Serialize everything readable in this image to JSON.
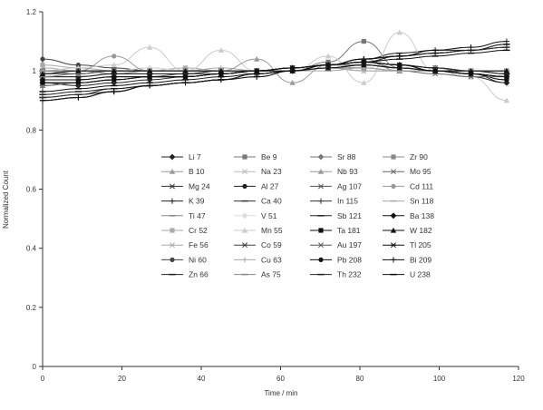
{
  "chart_data": {
    "type": "line",
    "title": "",
    "xlabel": "Time / min",
    "ylabel": "Normalized Count",
    "xlim": [
      0,
      120
    ],
    "ylim": [
      0,
      1.2
    ],
    "xticks": [
      "0",
      "20",
      "40",
      "60",
      "80",
      "100",
      "120"
    ],
    "yticks": [
      "0",
      "0.2",
      "0.4",
      "0.6",
      "0.8",
      "1",
      "1.2"
    ],
    "grid": false,
    "legend_position": "center, 5 columns inside plot",
    "x": [
      0,
      9,
      18,
      27,
      36,
      45,
      54,
      63,
      72,
      81,
      90,
      99,
      108,
      117
    ],
    "series": [
      {
        "name": "Li 7",
        "marker": "diamond-filled",
        "color": "#222222",
        "values": [
          0.96,
          0.95,
          0.96,
          0.97,
          0.98,
          0.99,
          1.0,
          1.01,
          1.02,
          1.03,
          1.02,
          1.01,
          0.99,
          0.96
        ]
      },
      {
        "name": "B 10",
        "marker": "triangle-filled",
        "color": "#999999",
        "values": [
          1.0,
          0.99,
          1.0,
          1.01,
          1.0,
          1.0,
          0.99,
          1.0,
          1.01,
          1.02,
          1.01,
          1.0,
          1.0,
          1.0
        ]
      },
      {
        "name": "Mg 24",
        "marker": "star",
        "color": "#333333",
        "values": [
          0.95,
          0.96,
          0.97,
          0.98,
          0.98,
          0.99,
          1.0,
          1.01,
          1.02,
          1.03,
          1.02,
          1.01,
          1.0,
          0.99
        ]
      },
      {
        "name": "K 39",
        "marker": "plus",
        "color": "#222222",
        "values": [
          0.9,
          0.91,
          0.93,
          0.95,
          0.96,
          0.97,
          0.99,
          1.0,
          1.02,
          1.04,
          1.05,
          1.06,
          1.07,
          1.08
        ]
      },
      {
        "name": "Ti 47",
        "marker": "dash",
        "color": "#888888",
        "values": [
          1.0,
          1.0,
          0.99,
          1.0,
          1.0,
          1.0,
          1.0,
          1.0,
          1.01,
          1.01,
          1.0,
          1.0,
          1.0,
          1.0
        ]
      },
      {
        "name": "Cr 52",
        "marker": "square-filled",
        "color": "#aaaaaa",
        "values": [
          1.02,
          1.01,
          1.0,
          1.0,
          1.01,
          1.0,
          1.0,
          1.0,
          1.01,
          1.01,
          1.0,
          1.0,
          1.0,
          1.0
        ]
      },
      {
        "name": "Fe 56",
        "marker": "x",
        "color": "#aaaaaa",
        "values": [
          1.01,
          1.0,
          1.0,
          1.0,
          1.0,
          1.0,
          1.0,
          1.0,
          1.01,
          1.0,
          1.0,
          1.0,
          1.0,
          1.0
        ]
      },
      {
        "name": "Ni 60",
        "marker": "circle-filled",
        "color": "#444444",
        "values": [
          1.04,
          1.02,
          1.01,
          1.0,
          1.0,
          1.0,
          1.0,
          1.0,
          1.01,
          1.02,
          1.01,
          1.0,
          0.99,
          0.97
        ]
      },
      {
        "name": "Zn 66",
        "marker": "dash",
        "color": "#222222",
        "values": [
          0.91,
          0.92,
          0.94,
          0.95,
          0.96,
          0.97,
          0.99,
          1.0,
          1.02,
          1.04,
          1.06,
          1.07,
          1.07,
          1.09
        ]
      },
      {
        "name": "Be 9",
        "marker": "square-filled",
        "color": "#777777",
        "values": [
          0.98,
          0.99,
          1.0,
          1.0,
          1.0,
          1.0,
          1.0,
          1.0,
          1.03,
          1.1,
          1.01,
          1.0,
          1.0,
          1.0
        ]
      },
      {
        "name": "Na 23",
        "marker": "x",
        "color": "#bbbbbb",
        "values": [
          0.99,
          1.0,
          1.0,
          1.0,
          1.0,
          1.0,
          1.0,
          1.0,
          1.01,
          1.0,
          1.0,
          1.0,
          1.0,
          0.99
        ]
      },
      {
        "name": "Al 27",
        "marker": "circle-filled",
        "color": "#222222",
        "values": [
          0.97,
          0.97,
          0.98,
          0.98,
          0.98,
          0.99,
          1.0,
          1.01,
          1.02,
          1.03,
          1.02,
          1.0,
          0.98,
          0.96
        ]
      },
      {
        "name": "Ca 40",
        "marker": "dash",
        "color": "#333333",
        "values": [
          0.91,
          0.92,
          0.93,
          0.95,
          0.96,
          0.97,
          0.99,
          1.0,
          1.02,
          1.03,
          1.05,
          1.06,
          1.07,
          1.08
        ]
      },
      {
        "name": "V 51",
        "marker": "diamond-filled",
        "color": "#dddddd",
        "values": [
          1.0,
          1.0,
          1.0,
          1.01,
          1.0,
          1.0,
          1.0,
          1.0,
          1.01,
          1.01,
          1.0,
          1.0,
          1.0,
          1.0
        ]
      },
      {
        "name": "Mn 55",
        "marker": "triangle-filled",
        "color": "#cccccc",
        "values": [
          1.0,
          1.01,
          1.02,
          1.08,
          1.0,
          1.07,
          1.0,
          1.0,
          1.05,
          0.96,
          1.13,
          1.0,
          0.98,
          0.9
        ]
      },
      {
        "name": "Co 59",
        "marker": "star",
        "color": "#444444",
        "values": [
          0.97,
          0.97,
          0.98,
          0.98,
          0.99,
          0.99,
          1.0,
          1.01,
          1.02,
          1.03,
          1.01,
          1.0,
          0.99,
          0.98
        ]
      },
      {
        "name": "Cu 63",
        "marker": "plus",
        "color": "#aaaaaa",
        "values": [
          1.0,
          1.0,
          1.0,
          1.0,
          1.0,
          1.01,
          1.0,
          1.0,
          1.01,
          1.0,
          1.0,
          1.0,
          1.0,
          1.0
        ]
      },
      {
        "name": "As 75",
        "marker": "dash",
        "color": "#888888",
        "values": [
          0.99,
          1.0,
          1.0,
          1.0,
          1.0,
          1.0,
          1.0,
          1.0,
          1.01,
          1.01,
          1.0,
          1.0,
          1.0,
          1.0
        ]
      },
      {
        "name": "Sr 88",
        "marker": "diamond-filled",
        "color": "#777777",
        "values": [
          0.95,
          0.96,
          0.97,
          0.98,
          0.98,
          0.99,
          1.0,
          1.01,
          1.02,
          1.03,
          1.02,
          1.01,
          0.99,
          0.98
        ]
      },
      {
        "name": "Nb 93",
        "marker": "triangle-filled",
        "color": "#999999",
        "values": [
          1.0,
          1.0,
          1.0,
          1.0,
          1.0,
          1.0,
          1.04,
          0.96,
          1.02,
          1.04,
          1.0,
          1.0,
          1.0,
          1.0
        ]
      },
      {
        "name": "Ag 107",
        "marker": "star",
        "color": "#555555",
        "values": [
          0.98,
          0.98,
          0.99,
          0.99,
          0.99,
          1.0,
          1.0,
          1.0,
          1.02,
          1.02,
          1.01,
          1.0,
          1.0,
          0.99
        ]
      },
      {
        "name": "In 115",
        "marker": "plus",
        "color": "#333333",
        "values": [
          0.9,
          0.91,
          0.93,
          0.95,
          0.96,
          0.97,
          0.98,
          1.0,
          1.02,
          1.04,
          1.05,
          1.06,
          1.07,
          1.08
        ]
      },
      {
        "name": "Sb 121",
        "marker": "dash",
        "color": "#222222",
        "values": [
          0.98,
          0.98,
          0.99,
          0.99,
          0.99,
          1.0,
          1.0,
          1.0,
          1.02,
          1.03,
          1.02,
          1.01,
          1.0,
          0.99
        ]
      },
      {
        "name": "Ta 181",
        "marker": "square-filled",
        "color": "#111111",
        "values": [
          1.0,
          1.0,
          1.0,
          1.0,
          1.0,
          1.0,
          1.0,
          1.0,
          1.01,
          1.02,
          1.01,
          1.0,
          1.0,
          1.0
        ]
      },
      {
        "name": "Au 197",
        "marker": "x",
        "color": "#555555",
        "values": [
          0.99,
          0.99,
          1.0,
          1.0,
          1.0,
          1.0,
          1.0,
          1.0,
          1.02,
          1.02,
          1.01,
          1.0,
          0.99,
          0.98
        ]
      },
      {
        "name": "Pb 208",
        "marker": "circle-filled",
        "color": "#111111",
        "values": [
          0.96,
          0.96,
          0.97,
          0.98,
          0.98,
          0.99,
          1.0,
          1.01,
          1.02,
          1.03,
          1.02,
          1.0,
          0.99,
          0.97
        ]
      },
      {
        "name": "Th 232",
        "marker": "dash",
        "color": "#222222",
        "values": [
          0.92,
          0.93,
          0.94,
          0.95,
          0.96,
          0.97,
          0.99,
          1.0,
          1.02,
          1.03,
          1.05,
          1.06,
          1.07,
          1.09
        ]
      },
      {
        "name": "Zr 90",
        "marker": "square-filled",
        "color": "#888888",
        "values": [
          0.98,
          0.99,
          1.0,
          1.0,
          1.0,
          1.0,
          1.0,
          1.0,
          1.02,
          1.02,
          1.01,
          1.0,
          1.0,
          1.0
        ]
      },
      {
        "name": "Mo 95",
        "marker": "x",
        "color": "#666666",
        "values": [
          0.99,
          0.99,
          1.0,
          1.0,
          1.0,
          1.0,
          1.0,
          1.0,
          1.01,
          1.01,
          1.0,
          0.99,
          0.98,
          0.98
        ]
      },
      {
        "name": "Cd 111",
        "marker": "circle-filled",
        "color": "#999999",
        "values": [
          1.0,
          1.0,
          1.05,
          1.0,
          1.0,
          1.0,
          1.0,
          1.0,
          1.01,
          1.01,
          1.0,
          1.0,
          1.0,
          1.0
        ]
      },
      {
        "name": "Sn 118",
        "marker": "dash",
        "color": "#aaaaaa",
        "values": [
          0.99,
          1.0,
          1.0,
          1.0,
          1.0,
          1.0,
          1.0,
          1.0,
          1.0,
          1.01,
          1.0,
          1.0,
          1.0,
          1.0
        ]
      },
      {
        "name": "Ba 138",
        "marker": "diamond-filled",
        "color": "#111111",
        "values": [
          0.97,
          0.97,
          0.98,
          0.98,
          0.98,
          0.99,
          1.0,
          1.01,
          1.02,
          1.03,
          1.02,
          1.0,
          0.99,
          0.98
        ]
      },
      {
        "name": "W 182",
        "marker": "triangle-filled",
        "color": "#111111",
        "values": [
          0.99,
          1.0,
          1.0,
          1.0,
          1.0,
          1.0,
          1.0,
          1.0,
          1.01,
          1.02,
          1.01,
          1.0,
          1.0,
          1.0
        ]
      },
      {
        "name": "Tl 205",
        "marker": "star",
        "color": "#111111",
        "values": [
          0.96,
          0.96,
          0.97,
          0.98,
          0.98,
          0.99,
          1.0,
          1.01,
          1.02,
          1.03,
          1.02,
          1.0,
          0.99,
          0.98
        ]
      },
      {
        "name": "Bi 209",
        "marker": "plus",
        "color": "#111111",
        "values": [
          0.9,
          0.91,
          0.93,
          0.95,
          0.96,
          0.97,
          0.98,
          1.0,
          1.02,
          1.04,
          1.05,
          1.07,
          1.08,
          1.1
        ]
      },
      {
        "name": "U 238",
        "marker": "dash",
        "color": "#111111",
        "values": [
          0.93,
          0.94,
          0.95,
          0.96,
          0.97,
          0.98,
          0.99,
          1.0,
          1.02,
          1.03,
          1.04,
          1.05,
          1.06,
          1.07
        ]
      }
    ]
  }
}
